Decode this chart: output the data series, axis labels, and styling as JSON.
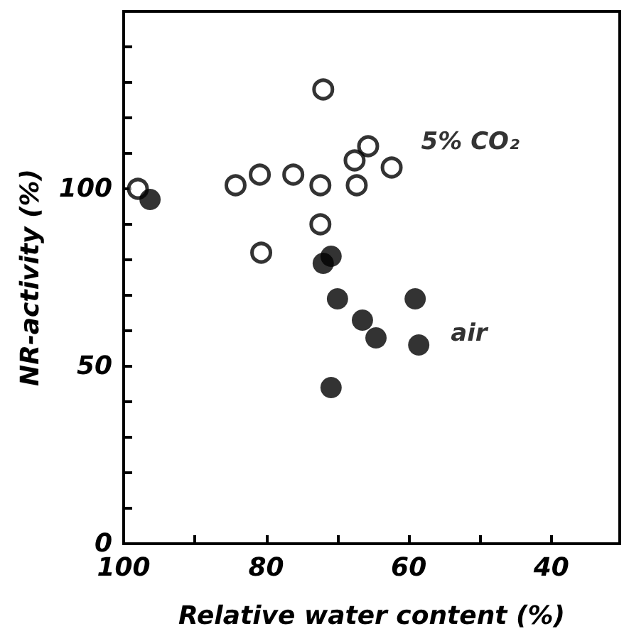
{
  "chart_data": {
    "type": "scatter",
    "xlabel": "Relative water content (%)",
    "ylabel": "NR-activity (%)",
    "xlim": [
      100,
      30.4
    ],
    "xticks": [
      100,
      {
        "value": 90,
        "label": null
      },
      80,
      {
        "value": 70,
        "label": null
      },
      60,
      {
        "value": 50,
        "label": null
      },
      40
    ],
    "ylim": [
      0,
      150
    ],
    "yticks": [
      0,
      {
        "value": 10,
        "label": null
      },
      {
        "value": 20,
        "label": null
      },
      {
        "value": 30,
        "label": null
      },
      {
        "value": 40,
        "label": null
      },
      50,
      {
        "value": 60,
        "label": null
      },
      {
        "value": 70,
        "label": null
      },
      {
        "value": 80,
        "label": null
      },
      {
        "value": 90,
        "label": null
      },
      100,
      {
        "value": 110,
        "label": null
      },
      {
        "value": 120,
        "label": null
      },
      {
        "value": 130,
        "label": null
      },
      {
        "value": 140,
        "label": null
      }
    ],
    "grid": false,
    "legend": false,
    "marker": "circle",
    "series": [
      {
        "name": "5% CO₂",
        "color": "#ffffff",
        "x": [
          72,
          65.7,
          67.6,
          62.4,
          84.3,
          80.9,
          76.2,
          72.4,
          67.3,
          98,
          72.4,
          80.7
        ],
        "values": [
          128,
          112,
          108,
          106,
          101,
          104,
          104,
          101,
          101,
          100,
          90,
          82
        ]
      },
      {
        "name": "air",
        "color": "#000000",
        "x": [
          96.3,
          70.9,
          72,
          70,
          66.5,
          64.6,
          59.1,
          58.6,
          70.9
        ],
        "values": [
          97,
          81,
          79,
          69,
          63,
          58,
          69,
          56,
          44
        ]
      }
    ]
  }
}
